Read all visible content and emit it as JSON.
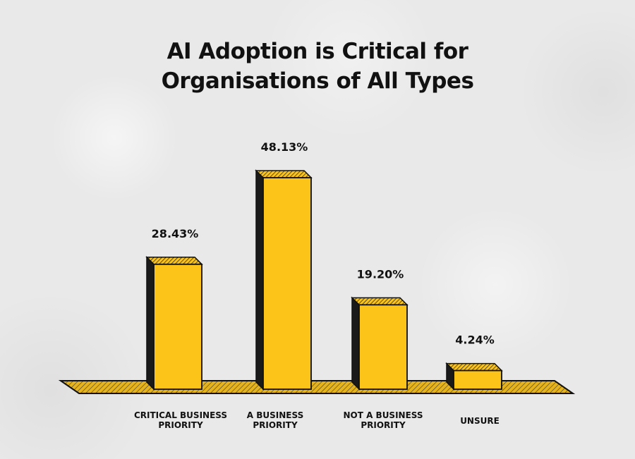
{
  "chart_data": {
    "type": "bar",
    "title_lines": [
      "AI Adoption is Critical for",
      "Organisations of All Types"
    ],
    "categories": [
      [
        "CRITICAL BUSINESS",
        "PRIORITY"
      ],
      [
        "A BUSINESS",
        "PRIORITY"
      ],
      [
        "NOT A BUSINESS",
        "PRIORITY"
      ],
      [
        "UNSURE"
      ]
    ],
    "values": [
      28.43,
      48.13,
      19.2,
      4.24
    ],
    "value_labels": [
      "28.43%",
      "48.13%",
      "19.20%",
      "4.24%"
    ],
    "ylim": [
      0,
      50
    ],
    "grid": false,
    "legend": "none"
  },
  "colors": {
    "bar_front": "#fcc419",
    "bar_side": "#1a1a1a",
    "floor": "#e6b41a",
    "outline": "#111111"
  }
}
